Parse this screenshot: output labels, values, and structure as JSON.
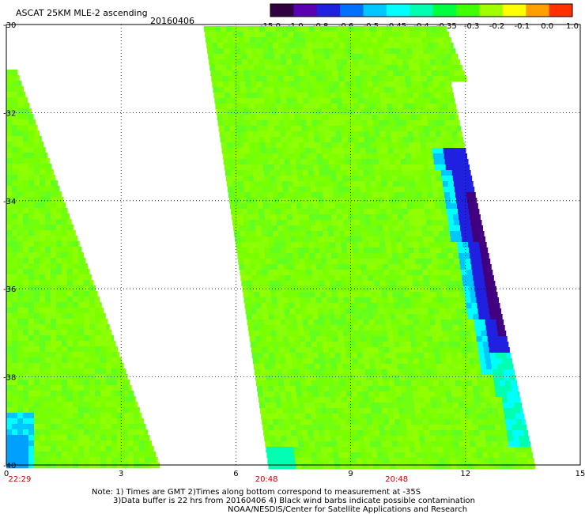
{
  "header": {
    "title": "ASCAT 25KM MLE-2 ascending",
    "date": "20160406"
  },
  "colorbar": {
    "labels": [
      "-15.0",
      "-1.0",
      "-0.8",
      "-0.6",
      "-0.5",
      "-0.45",
      "-0.4",
      "-0.35",
      "-0.3",
      "-0.2",
      "-0.1",
      "0.0",
      "1.0"
    ],
    "colors": [
      "#300040",
      "#5a00b0",
      "#2020e0",
      "#0070ff",
      "#00c8ff",
      "#00ffff",
      "#00ffb0",
      "#00ff40",
      "#40ff00",
      "#a0ff00",
      "#ffff00",
      "#ffa000",
      "#ff3000"
    ]
  },
  "axes": {
    "x_ticks": [
      "0",
      "3",
      "6",
      "9",
      "12",
      "15"
    ],
    "y_ticks": [
      "-30",
      "-32",
      "-34",
      "-36",
      "-38",
      "-40"
    ],
    "x_range": [
      0,
      15
    ],
    "y_range": [
      -30,
      -40
    ],
    "grid": "dotted"
  },
  "time_labels": [
    {
      "text": "22:29",
      "at_x": 0.35
    },
    {
      "text": "20:48",
      "at_x": 6.8
    },
    {
      "text": "20:48",
      "at_x": 10.2
    }
  ],
  "notes": {
    "line1": "Note: 1) Times are GMT 2)Times along bottom correspond to measurement at -35S",
    "line2": "3)Data buffer is 22 hrs from 20160406 4) Black wind barbs indicate possible contamination",
    "line3": "NOAA/NESDIS/Center for Satellite Applications and Research"
  },
  "colors": {
    "green_main": "#80ff00",
    "green_alt": "#60ff10",
    "cyan": "#00ffff",
    "blue": "#0000ff",
    "purple": "#400080",
    "time_label": "#cc0000"
  }
}
